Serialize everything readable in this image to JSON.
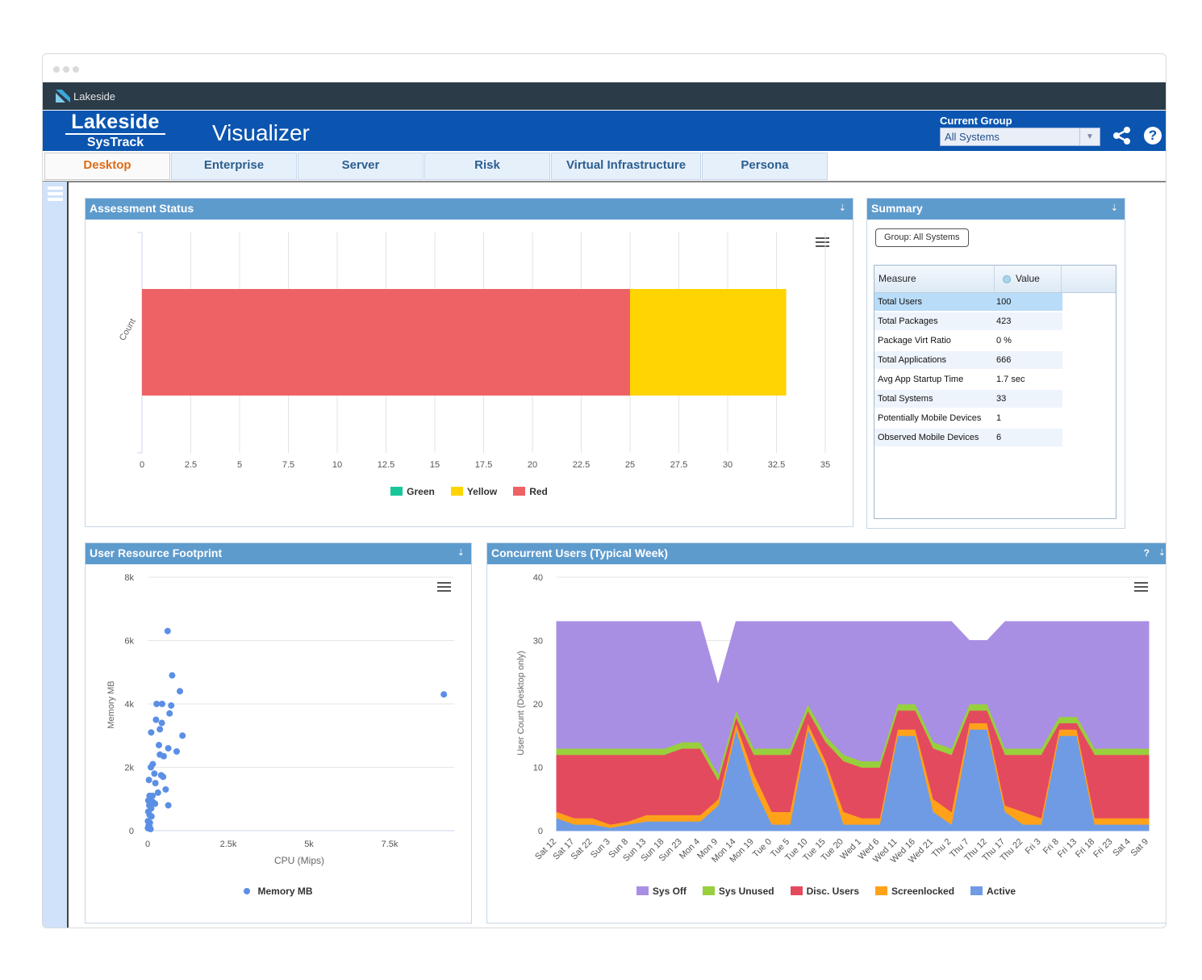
{
  "window": {
    "brand_bar": "Lakeside"
  },
  "header": {
    "brand_line1": "Lakeside",
    "brand_line2": "SysTrack",
    "app_title": "Visualizer",
    "current_group_label": "Current Group",
    "current_group_value": "All Systems",
    "help_label": "?"
  },
  "tabs": [
    {
      "label": "Desktop",
      "active": true
    },
    {
      "label": "Enterprise"
    },
    {
      "label": "Server"
    },
    {
      "label": "Risk"
    },
    {
      "label": "Virtual Infrastructure"
    },
    {
      "label": "Persona"
    }
  ],
  "panels": {
    "assessment": {
      "title": "Assessment Status",
      "pin": "⇣"
    },
    "summary": {
      "title": "Summary",
      "pin": "⇣",
      "group_button": "Group: All Systems"
    },
    "footprint": {
      "title": "User Resource Footprint",
      "pin": "⇣"
    },
    "concurrent": {
      "title": "Concurrent Users (Typical Week)",
      "pin": "⇣",
      "help": "?"
    }
  },
  "summary_table": {
    "headers": [
      "Measure",
      "Value"
    ],
    "rows": [
      {
        "measure": "Total Users",
        "value": "100"
      },
      {
        "measure": "Total Packages",
        "value": "423"
      },
      {
        "measure": "Package Virt Ratio",
        "value": "0 %"
      },
      {
        "measure": "Total Applications",
        "value": "666"
      },
      {
        "measure": "Avg App Startup Time",
        "value": "1.7 sec"
      },
      {
        "measure": "Total Systems",
        "value": "33"
      },
      {
        "measure": "Potentially Mobile Devices",
        "value": "1"
      },
      {
        "measure": "Observed Mobile Devices",
        "value": "6"
      }
    ]
  },
  "chart_data": [
    {
      "type": "bar",
      "orientation": "horizontal",
      "stacked": true,
      "ylabel": "Count",
      "xlim": [
        0,
        35
      ],
      "xticks": [
        "0",
        "2.5",
        "5",
        "7.5",
        "10",
        "12.5",
        "15",
        "17.5",
        "20",
        "22.5",
        "25",
        "27.5",
        "30",
        "32.5",
        "35"
      ],
      "xtick_values": [
        0,
        2.5,
        5,
        7.5,
        10,
        12.5,
        15,
        17.5,
        20,
        22.5,
        25,
        27.5,
        30,
        32.5,
        35
      ],
      "series": [
        {
          "name": "Green",
          "value": 0,
          "color": "#17c79a"
        },
        {
          "name": "Yellow",
          "value": 8,
          "color": "#ffd400"
        },
        {
          "name": "Red",
          "value": 25,
          "color": "#ee6266"
        }
      ],
      "stack_order": [
        "Red",
        "Yellow",
        "Green"
      ],
      "grid": true,
      "legend_position": "bottom"
    },
    {
      "type": "scatter",
      "xlabel": "CPU (Mips)",
      "ylabel": "Memory MB",
      "xlim": [
        0,
        9500
      ],
      "ylim": [
        0,
        8000
      ],
      "xticks": [
        "0",
        "2.5k",
        "5k",
        "7.5k"
      ],
      "xtick_values": [
        0,
        2500,
        5000,
        7500
      ],
      "yticks": [
        "0",
        "2k",
        "4k",
        "6k",
        "8k"
      ],
      "ytick_values": [
        0,
        2000,
        4000,
        6000,
        8000
      ],
      "series": [
        {
          "name": "Memory MB",
          "color": "#5b8fe6",
          "points": [
            [
              620,
              6300
            ],
            [
              760,
              4900
            ],
            [
              1000,
              4400
            ],
            [
              280,
              4000
            ],
            [
              730,
              3950
            ],
            [
              450,
              4000
            ],
            [
              680,
              3700
            ],
            [
              9180,
              4300
            ],
            [
              260,
              3500
            ],
            [
              440,
              3400
            ],
            [
              380,
              3200
            ],
            [
              110,
              3100
            ],
            [
              1080,
              3000
            ],
            [
              350,
              2700
            ],
            [
              640,
              2600
            ],
            [
              380,
              2400
            ],
            [
              500,
              2350
            ],
            [
              900,
              2500
            ],
            [
              160,
              2100
            ],
            [
              100,
              2000
            ],
            [
              210,
              1800
            ],
            [
              420,
              1750
            ],
            [
              480,
              1700
            ],
            [
              40,
              1600
            ],
            [
              240,
              1500
            ],
            [
              560,
              1300
            ],
            [
              320,
              1200
            ],
            [
              60,
              1100
            ],
            [
              150,
              1100
            ],
            [
              100,
              950
            ],
            [
              20,
              950
            ],
            [
              230,
              850
            ],
            [
              50,
              800
            ],
            [
              170,
              900
            ],
            [
              640,
              800
            ],
            [
              110,
              700
            ],
            [
              20,
              600
            ],
            [
              60,
              500
            ],
            [
              120,
              450
            ],
            [
              10,
              300
            ],
            [
              70,
              250
            ],
            [
              30,
              150
            ],
            [
              60,
              120
            ],
            [
              10,
              80
            ],
            [
              90,
              50
            ]
          ]
        }
      ],
      "grid": true,
      "legend_position": "bottom"
    },
    {
      "type": "area",
      "stacked": true,
      "ylabel": "User Count (Desktop only)",
      "ylim": [
        0,
        40
      ],
      "yticks": [
        "0",
        "10",
        "20",
        "30",
        "40"
      ],
      "ytick_values": [
        0,
        10,
        20,
        30,
        40
      ],
      "categories": [
        "Sat 12",
        "Sat 17",
        "Sat 22",
        "Sun 3",
        "Sun 8",
        "Sun 13",
        "Sun 18",
        "Sun 23",
        "Mon 4",
        "Mon 9",
        "Mon 14",
        "Mon 19",
        "Tue 0",
        "Tue 5",
        "Tue 10",
        "Tue 15",
        "Tue 20",
        "Wed 1",
        "Wed 6",
        "Wed 11",
        "Wed 16",
        "Wed 21",
        "Thu 2",
        "Thu 7",
        "Thu 12",
        "Thu 17",
        "Thu 22",
        "Fri 3",
        "Fri 8",
        "Fri 13",
        "Fri 18",
        "Fri 23",
        "Sat 4",
        "Sat 9"
      ],
      "series": [
        {
          "name": "Active",
          "color": "#6f9be4",
          "values": [
            2,
            1,
            1,
            0.5,
            1,
            1.5,
            1.5,
            1.5,
            1.5,
            4,
            16,
            7,
            1,
            1,
            16,
            10,
            1,
            1,
            1,
            15,
            15,
            3,
            1,
            16,
            16,
            3,
            1,
            1,
            15,
            15,
            1,
            1,
            1,
            1
          ]
        },
        {
          "name": "Screenlocked",
          "color": "#ffa21a",
          "values": [
            1,
            1,
            1,
            0.5,
            0.5,
            1,
            1,
            1,
            1,
            1,
            1,
            2,
            2,
            2,
            1,
            1,
            2,
            1,
            1,
            1,
            1,
            2,
            2,
            1,
            1,
            1,
            2,
            1,
            1,
            1,
            1,
            1,
            1,
            1
          ]
        },
        {
          "name": "Disc. Users",
          "color": "#e44a5e",
          "values": [
            9,
            10,
            10,
            11,
            10.5,
            9.5,
            9.5,
            10.5,
            10.5,
            3,
            1,
            3,
            9,
            9,
            2,
            3,
            8,
            8,
            8,
            3,
            3,
            8,
            9,
            2,
            2,
            8,
            9,
            10,
            1,
            1,
            10,
            10,
            10,
            10
          ]
        },
        {
          "name": "Sys Unused",
          "color": "#98cf3c",
          "values": [
            1,
            1,
            1,
            1,
            1,
            1,
            1,
            1,
            1,
            1,
            1,
            1,
            1,
            1,
            1,
            1,
            1,
            1,
            1,
            1,
            1,
            1,
            1,
            1,
            1,
            1,
            1,
            1,
            1,
            1,
            1,
            1,
            1,
            1
          ]
        },
        {
          "name": "Sys Off",
          "color": "#a98fe3",
          "values": [
            20,
            20,
            20,
            20,
            20,
            20,
            20,
            19,
            19,
            14,
            14,
            20,
            20,
            20,
            13,
            18,
            21,
            22,
            22,
            13,
            13,
            19,
            20,
            10,
            10,
            20,
            20,
            20,
            15,
            15,
            20,
            20,
            20,
            20
          ]
        }
      ],
      "legend_order": [
        "Sys Off",
        "Sys Unused",
        "Disc. Users",
        "Screenlocked",
        "Active"
      ],
      "grid": true,
      "legend_position": "bottom"
    }
  ]
}
